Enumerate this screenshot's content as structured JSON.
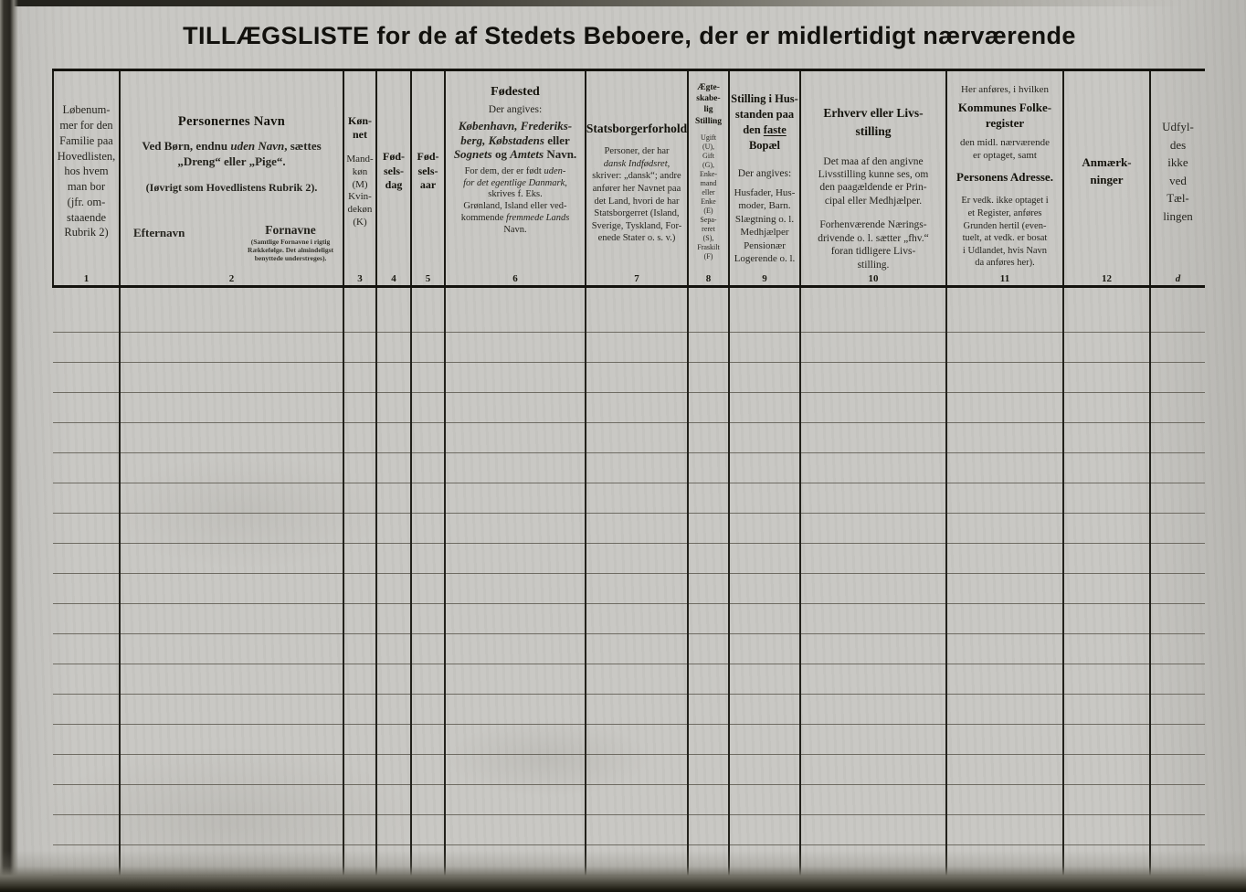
{
  "page": {
    "title": "TILLÆGSLISTE for de af Stedets Beboere, der er midlertidigt nærværende"
  },
  "table": {
    "row_count": 20,
    "columns": [
      {
        "number": "1",
        "text": "Løbenum-\nmer for den\nFamilie paa\nHovedlisten,\nhos hvem\nman bor\n(jfr. om-\nstaaende\nRubrik 2)"
      },
      {
        "number": "2",
        "heading": "Personernes Navn",
        "note1": [
          {
            "t": "Ved Børn, endnu "
          },
          {
            "t": "uden Navn",
            "style": "i"
          },
          {
            "t": ", sættes\n„Dreng“ eller „Pige“."
          }
        ],
        "note2": "(Iøvrigt som Hovedlistens Rubrik 2).",
        "label_left": "Efternavn",
        "label_right": "Fornavne",
        "label_right_note": "(Samtlige Fornavne i rigtig\nRækkefølge. Det almindeligst\nbenyttede understreges)."
      },
      {
        "number": "3",
        "heading": "Køn-\nnet",
        "text": "Mand-\nkøn\n(M)\nKvin-\ndekøn\n(K)"
      },
      {
        "number": "4",
        "heading": "Fød-\nsels-\ndag"
      },
      {
        "number": "5",
        "heading": "Fød-\nsels-\naar"
      },
      {
        "number": "6",
        "heading": "Fødested",
        "sub": "Der angives:",
        "note1": [
          {
            "t": "København, Frederiks-\nberg, Købstadens",
            "style": "i"
          },
          {
            "t": " eller\n"
          },
          {
            "t": "Sognets",
            "style": "i"
          },
          {
            "t": " og "
          },
          {
            "t": "Amtets",
            "style": "i"
          },
          {
            "t": " Navn."
          }
        ],
        "note2": [
          {
            "t": "For dem, der er født "
          },
          {
            "t": "uden-\nfor det egentlige Danmark",
            "style": "i"
          },
          {
            "t": ",\nskrives f. Eks.\nGrønland, Island eller ved-\nkommende "
          },
          {
            "t": "fremmede Lands",
            "style": "i"
          },
          {
            "t": "\nNavn."
          }
        ]
      },
      {
        "number": "7",
        "heading": "Statsborgerforhold",
        "note1": [
          {
            "t": "Personer, der har\n"
          },
          {
            "t": "dansk Indfødsret",
            "style": "i"
          },
          {
            "t": ",\nskriver: „dansk“; andre\nanfører her Navnet paa\ndet Land, hvori de har\nStatsborgerret (Island,\nSverige, Tyskland, For-\nenede Stater o. s. v.)"
          }
        ]
      },
      {
        "number": "8",
        "heading": "Ægte-\nskabe-\nlig\nStilling",
        "text": "Ugift\n(U),\nGift\n(G),\nEnke-\nmand\neller\nEnke\n(E)\nSepa-\nreret\n(S),\nFraskilt\n(F)"
      },
      {
        "number": "9",
        "heading": [
          {
            "t": "Stilling i Hus-\nstanden paa\nden "
          },
          {
            "t": "faste",
            "style": "u"
          },
          {
            "t": "\nBopæl"
          }
        ],
        "sub": "Der angives:",
        "text": "Husfader, Hus-\nmoder, Barn.\nSlægtning o. l.\nMedhjælper\nPensionær\nLogerende o. l."
      },
      {
        "number": "10",
        "heading": "Erhverv eller Livs-\nstilling",
        "note1": "Det maa af den angivne\nLivsstilling kunne ses, om\nden paagældende er Prin-\ncipal eller Medhjælper.",
        "note2": "Forhenværende Nærings-\ndrivende o. l. sætter „fhv.“\nforan tidligere Livs-\nstilling."
      },
      {
        "number": "11",
        "pre": "Her anføres, i hvilken",
        "heading1": "Kommunes Folke-\nregister",
        "mid": "den midl. nærværende\ner optaget, samt",
        "heading2": "Personens Adresse.",
        "note": "Er vedk. ikke optaget i\net Register, anføres\nGrunden hertil (even-\ntuelt, at vedk. er bosat\ni Udlandet, hvis Navn\nda anføres her)."
      },
      {
        "number": "12",
        "heading": "Anmærk-\nninger"
      },
      {
        "number": "d",
        "text": "Udfyl-\ndes\nikke\nved\nTæl-\nlingen"
      }
    ]
  }
}
